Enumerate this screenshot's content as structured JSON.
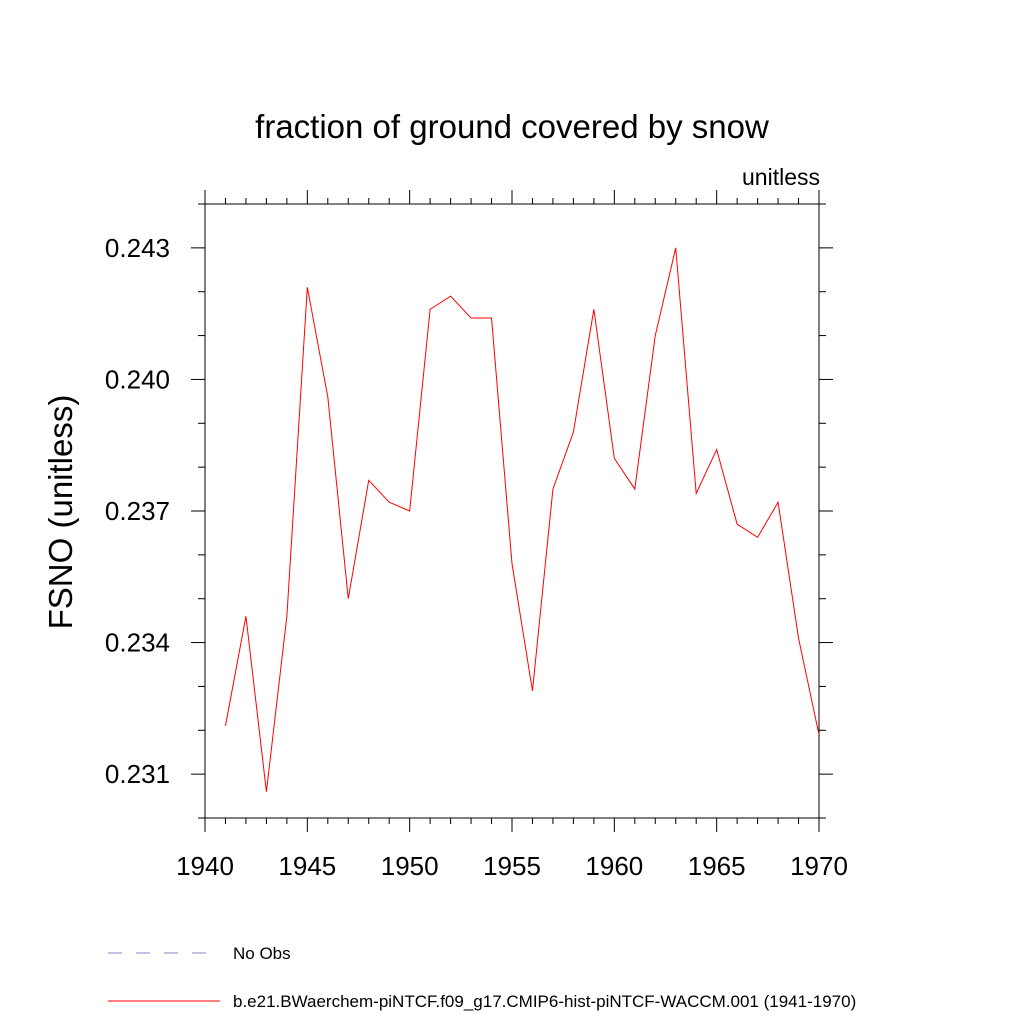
{
  "chart_data": {
    "type": "line",
    "title": "fraction of ground covered by snow",
    "units_label": "unitless",
    "ylabel": "FSNO  (unitless)",
    "xlabel": "",
    "xlim": [
      1940,
      1970
    ],
    "ylim": [
      0.23,
      0.244
    ],
    "xticks": [
      1940,
      1945,
      1950,
      1955,
      1960,
      1965,
      1970
    ],
    "yticks": [
      0.231,
      0.234,
      0.237,
      0.24,
      0.243
    ],
    "ytick_labels": [
      "0.231",
      "0.234",
      "0.237",
      "0.240",
      "0.243"
    ],
    "grid": false,
    "legend_position": "bottom-left",
    "series": [
      {
        "name": "No Obs",
        "color": "#8080c0",
        "style": "dashed",
        "x": [],
        "y": []
      },
      {
        "name": "b.e21.BWaerchem-piNTCF.f09_g17.CMIP6-hist-piNTCF-WACCM.001 (1941-1970)",
        "color": "#ff0000",
        "style": "solid",
        "x": [
          1941,
          1942,
          1943,
          1944,
          1945,
          1946,
          1947,
          1948,
          1949,
          1950,
          1951,
          1952,
          1953,
          1954,
          1955,
          1956,
          1957,
          1958,
          1959,
          1960,
          1961,
          1962,
          1963,
          1964,
          1965,
          1966,
          1967,
          1968,
          1969,
          1970
        ],
        "y": [
          0.2321,
          0.2346,
          0.2306,
          0.2346,
          0.2421,
          0.2396,
          0.235,
          0.2377,
          0.2372,
          0.237,
          0.2416,
          0.2419,
          0.2414,
          0.2414,
          0.2358,
          0.2329,
          0.2375,
          0.2388,
          0.2416,
          0.2382,
          0.2375,
          0.241,
          0.243,
          0.2374,
          0.2384,
          0.2367,
          0.2364,
          0.2372,
          0.2341,
          0.2319
        ]
      }
    ]
  }
}
